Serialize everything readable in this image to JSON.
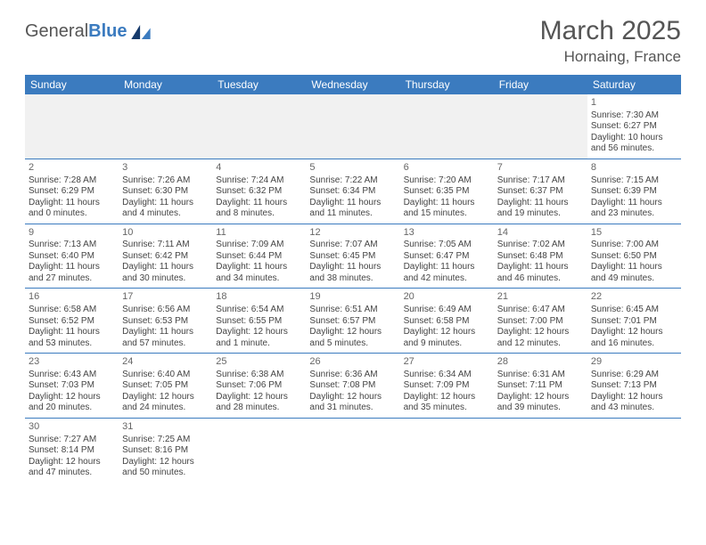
{
  "logo": {
    "word1": "General",
    "word2": "Blue"
  },
  "title": "March 2025",
  "location": "Hornaing, France",
  "header_bg": "#3b7bbf",
  "border_color": "#3b7bbf",
  "blank_bg": "#f1f1f1",
  "days": [
    "Sunday",
    "Monday",
    "Tuesday",
    "Wednesday",
    "Thursday",
    "Friday",
    "Saturday"
  ],
  "weeks": [
    [
      null,
      null,
      null,
      null,
      null,
      null,
      {
        "n": "1",
        "sr": "Sunrise: 7:30 AM",
        "ss": "Sunset: 6:27 PM",
        "dl": "Daylight: 10 hours and 56 minutes."
      }
    ],
    [
      {
        "n": "2",
        "sr": "Sunrise: 7:28 AM",
        "ss": "Sunset: 6:29 PM",
        "dl": "Daylight: 11 hours and 0 minutes."
      },
      {
        "n": "3",
        "sr": "Sunrise: 7:26 AM",
        "ss": "Sunset: 6:30 PM",
        "dl": "Daylight: 11 hours and 4 minutes."
      },
      {
        "n": "4",
        "sr": "Sunrise: 7:24 AM",
        "ss": "Sunset: 6:32 PM",
        "dl": "Daylight: 11 hours and 8 minutes."
      },
      {
        "n": "5",
        "sr": "Sunrise: 7:22 AM",
        "ss": "Sunset: 6:34 PM",
        "dl": "Daylight: 11 hours and 11 minutes."
      },
      {
        "n": "6",
        "sr": "Sunrise: 7:20 AM",
        "ss": "Sunset: 6:35 PM",
        "dl": "Daylight: 11 hours and 15 minutes."
      },
      {
        "n": "7",
        "sr": "Sunrise: 7:17 AM",
        "ss": "Sunset: 6:37 PM",
        "dl": "Daylight: 11 hours and 19 minutes."
      },
      {
        "n": "8",
        "sr": "Sunrise: 7:15 AM",
        "ss": "Sunset: 6:39 PM",
        "dl": "Daylight: 11 hours and 23 minutes."
      }
    ],
    [
      {
        "n": "9",
        "sr": "Sunrise: 7:13 AM",
        "ss": "Sunset: 6:40 PM",
        "dl": "Daylight: 11 hours and 27 minutes."
      },
      {
        "n": "10",
        "sr": "Sunrise: 7:11 AM",
        "ss": "Sunset: 6:42 PM",
        "dl": "Daylight: 11 hours and 30 minutes."
      },
      {
        "n": "11",
        "sr": "Sunrise: 7:09 AM",
        "ss": "Sunset: 6:44 PM",
        "dl": "Daylight: 11 hours and 34 minutes."
      },
      {
        "n": "12",
        "sr": "Sunrise: 7:07 AM",
        "ss": "Sunset: 6:45 PM",
        "dl": "Daylight: 11 hours and 38 minutes."
      },
      {
        "n": "13",
        "sr": "Sunrise: 7:05 AM",
        "ss": "Sunset: 6:47 PM",
        "dl": "Daylight: 11 hours and 42 minutes."
      },
      {
        "n": "14",
        "sr": "Sunrise: 7:02 AM",
        "ss": "Sunset: 6:48 PM",
        "dl": "Daylight: 11 hours and 46 minutes."
      },
      {
        "n": "15",
        "sr": "Sunrise: 7:00 AM",
        "ss": "Sunset: 6:50 PM",
        "dl": "Daylight: 11 hours and 49 minutes."
      }
    ],
    [
      {
        "n": "16",
        "sr": "Sunrise: 6:58 AM",
        "ss": "Sunset: 6:52 PM",
        "dl": "Daylight: 11 hours and 53 minutes."
      },
      {
        "n": "17",
        "sr": "Sunrise: 6:56 AM",
        "ss": "Sunset: 6:53 PM",
        "dl": "Daylight: 11 hours and 57 minutes."
      },
      {
        "n": "18",
        "sr": "Sunrise: 6:54 AM",
        "ss": "Sunset: 6:55 PM",
        "dl": "Daylight: 12 hours and 1 minute."
      },
      {
        "n": "19",
        "sr": "Sunrise: 6:51 AM",
        "ss": "Sunset: 6:57 PM",
        "dl": "Daylight: 12 hours and 5 minutes."
      },
      {
        "n": "20",
        "sr": "Sunrise: 6:49 AM",
        "ss": "Sunset: 6:58 PM",
        "dl": "Daylight: 12 hours and 9 minutes."
      },
      {
        "n": "21",
        "sr": "Sunrise: 6:47 AM",
        "ss": "Sunset: 7:00 PM",
        "dl": "Daylight: 12 hours and 12 minutes."
      },
      {
        "n": "22",
        "sr": "Sunrise: 6:45 AM",
        "ss": "Sunset: 7:01 PM",
        "dl": "Daylight: 12 hours and 16 minutes."
      }
    ],
    [
      {
        "n": "23",
        "sr": "Sunrise: 6:43 AM",
        "ss": "Sunset: 7:03 PM",
        "dl": "Daylight: 12 hours and 20 minutes."
      },
      {
        "n": "24",
        "sr": "Sunrise: 6:40 AM",
        "ss": "Sunset: 7:05 PM",
        "dl": "Daylight: 12 hours and 24 minutes."
      },
      {
        "n": "25",
        "sr": "Sunrise: 6:38 AM",
        "ss": "Sunset: 7:06 PM",
        "dl": "Daylight: 12 hours and 28 minutes."
      },
      {
        "n": "26",
        "sr": "Sunrise: 6:36 AM",
        "ss": "Sunset: 7:08 PM",
        "dl": "Daylight: 12 hours and 31 minutes."
      },
      {
        "n": "27",
        "sr": "Sunrise: 6:34 AM",
        "ss": "Sunset: 7:09 PM",
        "dl": "Daylight: 12 hours and 35 minutes."
      },
      {
        "n": "28",
        "sr": "Sunrise: 6:31 AM",
        "ss": "Sunset: 7:11 PM",
        "dl": "Daylight: 12 hours and 39 minutes."
      },
      {
        "n": "29",
        "sr": "Sunrise: 6:29 AM",
        "ss": "Sunset: 7:13 PM",
        "dl": "Daylight: 12 hours and 43 minutes."
      }
    ],
    [
      {
        "n": "30",
        "sr": "Sunrise: 7:27 AM",
        "ss": "Sunset: 8:14 PM",
        "dl": "Daylight: 12 hours and 47 minutes."
      },
      {
        "n": "31",
        "sr": "Sunrise: 7:25 AM",
        "ss": "Sunset: 8:16 PM",
        "dl": "Daylight: 12 hours and 50 minutes."
      },
      null,
      null,
      null,
      null,
      null
    ]
  ]
}
